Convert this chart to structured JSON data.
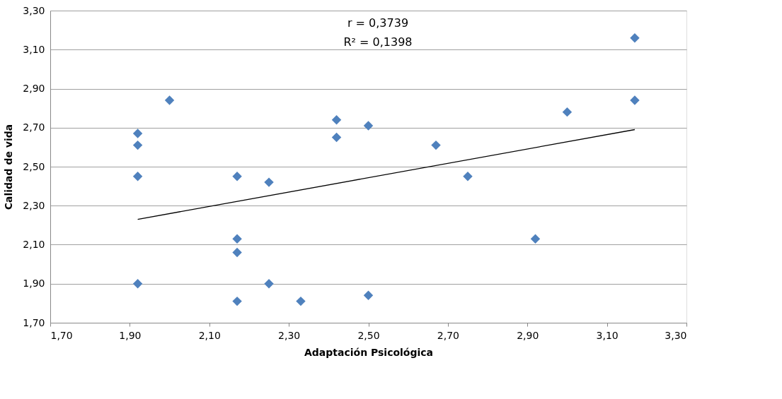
{
  "chart_data": {
    "type": "scatter",
    "xlabel": "Adaptación  Psicológica",
    "ylabel": "Calidad de vida",
    "annotations": [
      "r = 0,3739",
      "R² = 0,1398"
    ],
    "series": [
      {
        "type": "scatter",
        "color": "#4f81bd",
        "marker": "diamond",
        "x": [
          1.92,
          1.92,
          1.92,
          1.92,
          2.0,
          2.17,
          2.17,
          2.17,
          2.17,
          2.25,
          2.25,
          2.33,
          2.42,
          2.42,
          2.5,
          2.5,
          2.67,
          2.75,
          2.92,
          3.0,
          3.17,
          3.17
        ],
        "values": [
          2.67,
          2.61,
          2.45,
          1.9,
          2.84,
          2.45,
          2.13,
          2.06,
          1.81,
          2.42,
          1.9,
          1.81,
          2.74,
          2.65,
          2.71,
          1.84,
          2.61,
          2.45,
          2.13,
          2.78,
          3.16,
          2.84
        ]
      },
      {
        "type": "line",
        "color": "#000000",
        "line_style": "solid",
        "x": [
          1.92,
          3.17
        ],
        "values": [
          2.23,
          2.69
        ]
      }
    ],
    "xlim": [
      1.7,
      3.3
    ],
    "xticks": [
      {
        "value": 1.7,
        "label": "1,70"
      },
      {
        "value": 1.9,
        "label": "1,90"
      },
      {
        "value": 2.1,
        "label": "2,10"
      },
      {
        "value": 2.3,
        "label": "2,30"
      },
      {
        "value": 2.5,
        "label": "2,50"
      },
      {
        "value": 2.7,
        "label": "2,70"
      },
      {
        "value": 2.9,
        "label": "2,90"
      },
      {
        "value": 3.1,
        "label": "3,10"
      },
      {
        "value": 3.3,
        "label": "3,30"
      }
    ],
    "ylim": [
      1.7,
      3.3
    ],
    "yticks": [
      {
        "value": 1.7,
        "label": "1,70"
      },
      {
        "value": 1.9,
        "label": "1,90"
      },
      {
        "value": 2.1,
        "label": "2,10"
      },
      {
        "value": 2.3,
        "label": "2,30"
      },
      {
        "value": 2.5,
        "label": "2,50"
      },
      {
        "value": 2.7,
        "label": "2,70"
      },
      {
        "value": 2.9,
        "label": "2,90"
      },
      {
        "value": 3.1,
        "label": "3,10"
      },
      {
        "value": 3.3,
        "label": "3,30"
      }
    ],
    "grid": "y"
  }
}
